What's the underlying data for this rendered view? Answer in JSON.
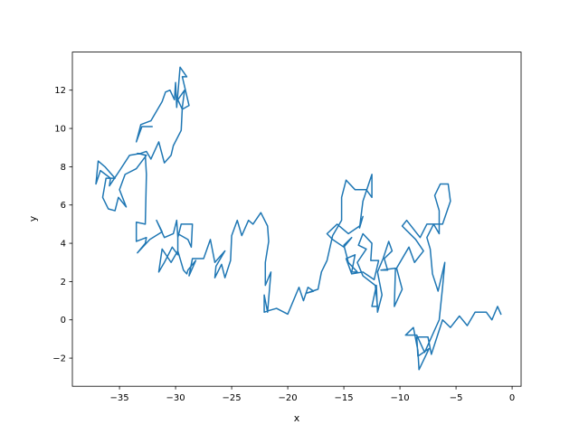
{
  "chart_data": {
    "type": "line",
    "xlabel": "x",
    "ylabel": "y",
    "xlim": [
      -39.2,
      0.8
    ],
    "ylim": [
      -3.47,
      13.99
    ],
    "xticks": [
      {
        "value": -35,
        "label": "−35"
      },
      {
        "value": -30,
        "label": "−30"
      },
      {
        "value": -25,
        "label": "−25"
      },
      {
        "value": -20,
        "label": "−20"
      },
      {
        "value": -15,
        "label": "−15"
      },
      {
        "value": -10,
        "label": "−10"
      },
      {
        "value": -5,
        "label": "−5"
      },
      0
    ],
    "yticks": [
      {
        "value": -2,
        "label": "−2"
      },
      0,
      2,
      4,
      6,
      8,
      10,
      12
    ],
    "grid": false,
    "x": [
      -1,
      -1.3,
      -1.8,
      -2.3,
      -3.3,
      -4,
      -4.7,
      -5.5,
      -6.2,
      -7.2,
      -7.5,
      -8.5,
      -8.4,
      -7.4,
      -8.3,
      -8.4,
      -8.8,
      -9.5,
      -8.5,
      -7.8,
      -6.5,
      -6.2,
      -6,
      -6.6,
      -7.1,
      -7.3,
      -7.6,
      -7,
      -6.2,
      -5.5,
      -5.7,
      -6.4,
      -6.9,
      -6.5,
      -6.5,
      -7,
      -7.6,
      -8.2,
      -9.4,
      -9.8,
      -8.6,
      -7.9,
      -8.7,
      -9.2,
      -10.3,
      -9.8,
      -10.5,
      -10.4,
      -11.7,
      -11.1,
      -11.4,
      -10.7,
      -11,
      -11.5,
      -12,
      -11.6,
      -12,
      -12.1,
      -12.5,
      -12,
      -12.2,
      -13.3,
      -13.8,
      -13,
      -13.7,
      -13.3,
      -12.5,
      -12.6,
      -11.9,
      -12.3,
      -13.3,
      -14.3,
      -14.8,
      -14,
      -14.3,
      -13.8,
      -14.6,
      -15,
      -14.3,
      -15,
      -16,
      -16.5,
      -15.6,
      -14.6,
      -13.6,
      -13.3,
      -13.6,
      -13.3,
      -12.5,
      -12.5,
      -13,
      -14,
      -14.8,
      -15.2,
      -15.2,
      -16,
      -16.5,
      -17,
      -17.3,
      -17.8,
      -18.3,
      -17.7,
      -18.2,
      -18.6,
      -19,
      -20,
      -21,
      -21.6,
      -22.1,
      -22.1,
      -21.8,
      -21.5,
      -22,
      -22,
      -21.7,
      -21.8,
      -22.4,
      -23.1,
      -23.5,
      -24.1,
      -24.5,
      -25,
      -25.1,
      -25.6,
      -25.9,
      -26.5,
      -26.4,
      -25.6,
      -26.5,
      -26.9,
      -27.5,
      -28.5,
      -28.8,
      -28.2,
      -28.9,
      -29,
      -29.3,
      -29.8,
      -30.4,
      -31.2,
      -31.5,
      -31,
      -30.3,
      -29.8,
      -29.8,
      -28.9,
      -28.6,
      -28.5,
      -29.5,
      -29.8,
      -29.9,
      -30.2,
      -31,
      -31.7,
      -31.2,
      -32.3,
      -33.4,
      -32.7,
      -32.6,
      -33.5,
      -33.5,
      -32.7,
      -32.6,
      -32.7,
      -33.4,
      -32.6,
      -33.5,
      -34.5,
      -35,
      -34.4,
      -35.1,
      -35.4,
      -36,
      -36.5,
      -36.2,
      -35.4,
      -36.3,
      -36.9,
      -37.1,
      -36.7,
      -35.8,
      -35.9,
      -35.1,
      -34.1,
      -33.1,
      -32.6,
      -32.2,
      -31.5,
      -31,
      -30.4,
      -30.2,
      -29.5,
      -29.4,
      -29.2,
      -29.8,
      -29.4,
      -28.8,
      -29.4,
      -29,
      -29.6,
      -29.9,
      -30,
      -30.1,
      -30.5,
      -30.9,
      -31.2,
      -32.2,
      -33.1,
      -33.5,
      -33,
      -32.1
    ],
    "series": [
      {
        "color": "#1f77b4",
        "values": [
          0.3,
          0.7,
          0,
          0.4,
          0.4,
          -0.3,
          0.2,
          -0.4,
          0,
          -1.8,
          -0.9,
          -0.9,
          -1.9,
          -1.5,
          -2.6,
          -1.6,
          -0.4,
          -0.8,
          -0.8,
          -1.7,
          0,
          1.7,
          3,
          1.5,
          2.4,
          3.7,
          4.3,
          5,
          5,
          6.2,
          7.1,
          7.1,
          6.5,
          5.7,
          4.5,
          5,
          5,
          4.3,
          5.2,
          4.9,
          4.2,
          3.6,
          3,
          3.8,
          2.7,
          1.6,
          0.7,
          2.7,
          2.6,
          2.6,
          3.2,
          3.6,
          4.1,
          3.2,
          2.5,
          1.3,
          0.4,
          1.8,
          0.7,
          0.7,
          1.8,
          2.3,
          3,
          3.7,
          3.9,
          4.5,
          4,
          3.1,
          3.1,
          2.1,
          2.5,
          2.4,
          3.2,
          3.4,
          2.5,
          2.5,
          3,
          3.9,
          4.3,
          3.8,
          4.2,
          4.5,
          5,
          4.5,
          4.9,
          5.4,
          4.8,
          6.2,
          7.6,
          6.4,
          6.8,
          6.8,
          7.3,
          6.4,
          5.2,
          4.4,
          3.1,
          2.5,
          1.6,
          1.5,
          1.4,
          1.5,
          1.7,
          1,
          1.7,
          0.3,
          0.6,
          0.5,
          0.4,
          1.3,
          0.4,
          2.5,
          1.8,
          3,
          4.1,
          4.9,
          5.6,
          5,
          5.2,
          4.4,
          5.2,
          4.4,
          3.1,
          2.2,
          2.9,
          2.2,
          2.8,
          3.6,
          3,
          4.2,
          3.2,
          3.2,
          2.3,
          3.1,
          2.6,
          2.4,
          2.6,
          3.6,
          3,
          3.7,
          2.5,
          3,
          3.8,
          3.4,
          4.5,
          4.2,
          3.8,
          5,
          5,
          4.3,
          5.2,
          4.5,
          4.3,
          5.2,
          4.6,
          4.2,
          3.5,
          4,
          4.3,
          4.1,
          5.1,
          5,
          7.6,
          8.6,
          8.7,
          8.6,
          7.9,
          7.6,
          6.8,
          5.9,
          6.4,
          5.7,
          5.8,
          6.4,
          7.4,
          7.4,
          8,
          8.3,
          7.1,
          7.8,
          7.4,
          7,
          7.7,
          8.6,
          8.7,
          8.8,
          8.4,
          9.3,
          8.2,
          8.6,
          9.1,
          9.9,
          11.1,
          12,
          11.5,
          11,
          11.2,
          12.7,
          12.7,
          13.2,
          11.1,
          12.4,
          11.5,
          12,
          11.9,
          11.4,
          10.4,
          10.2,
          9.3,
          10.1,
          10.1
        ]
      }
    ]
  }
}
